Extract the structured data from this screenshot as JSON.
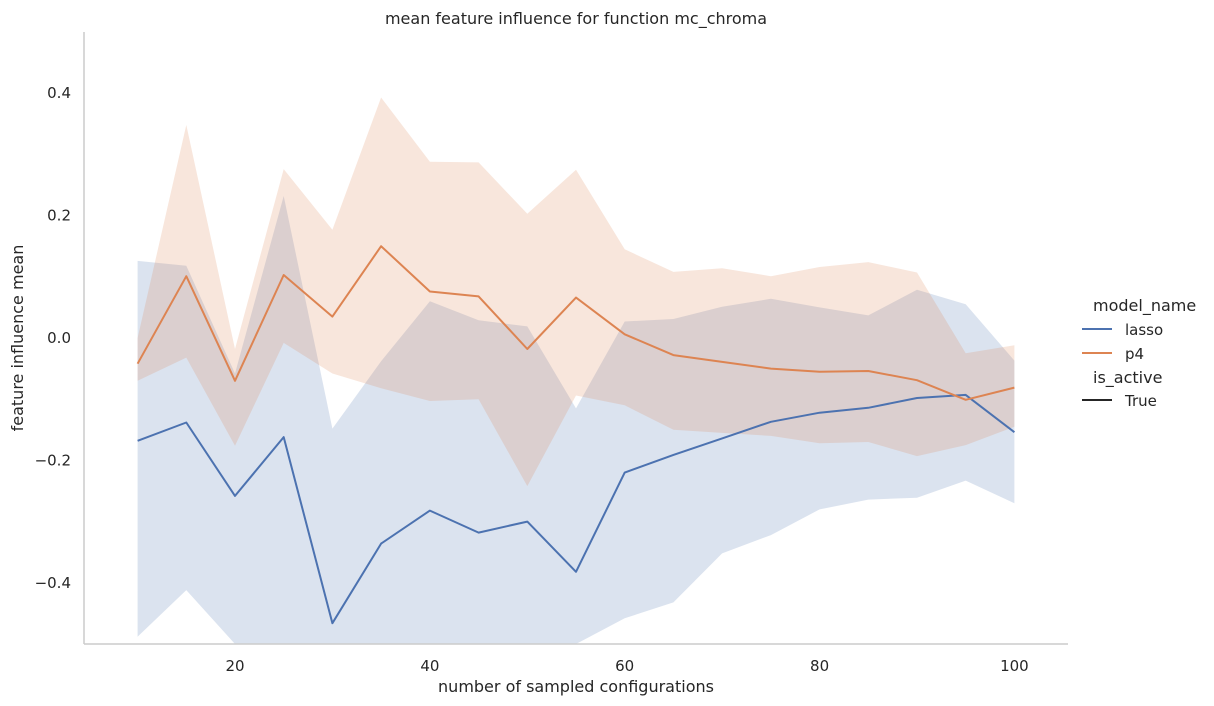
{
  "chart_data": {
    "type": "line",
    "title": "mean feature influence for function mc_chroma",
    "xlabel": "number of sampled configurations",
    "ylabel": "feature influence mean",
    "xlim": [
      4.5,
      105.5
    ],
    "ylim": [
      -0.5,
      0.5
    ],
    "xticks": [
      20,
      40,
      60,
      80,
      100
    ],
    "yticks": [
      -0.4,
      -0.2,
      0.0,
      0.2,
      0.4
    ],
    "ytick_labels": [
      "−0.4",
      "−0.2",
      "0.0",
      "0.2",
      "0.4"
    ],
    "grid": false,
    "legend_placement": "right",
    "x": [
      10,
      15,
      20,
      25,
      30,
      35,
      40,
      45,
      50,
      55,
      60,
      65,
      70,
      75,
      80,
      85,
      90,
      95,
      100
    ],
    "series": [
      {
        "name": "lasso",
        "color": "#4c72b0",
        "values": [
          -0.168,
          -0.138,
          -0.258,
          -0.162,
          -0.466,
          -0.336,
          -0.282,
          -0.318,
          -0.3,
          -0.382,
          -0.22,
          -0.191,
          -0.164,
          -0.137,
          -0.122,
          -0.114,
          -0.098,
          -0.093,
          -0.154
        ],
        "ci_lower": [
          -0.488,
          -0.412,
          -0.51,
          -0.51,
          -0.51,
          -0.51,
          -0.51,
          -0.51,
          -0.51,
          -0.51,
          -0.458,
          -0.432,
          -0.352,
          -0.322,
          -0.28,
          -0.264,
          -0.261,
          -0.233,
          -0.27
        ],
        "ci_upper": [
          0.126,
          0.118,
          -0.058,
          0.232,
          -0.148,
          -0.038,
          0.06,
          0.029,
          0.019,
          -0.115,
          0.027,
          0.031,
          0.051,
          0.064,
          0.05,
          0.037,
          0.079,
          0.055,
          -0.037
        ]
      },
      {
        "name": "p4",
        "color": "#dd8452",
        "values": [
          -0.042,
          0.101,
          -0.07,
          0.103,
          0.035,
          0.15,
          0.076,
          0.068,
          -0.018,
          0.066,
          0.006,
          -0.028,
          -0.039,
          -0.05,
          -0.055,
          -0.054,
          -0.069,
          -0.101,
          -0.081
        ],
        "ci_lower": [
          -0.07,
          -0.032,
          -0.176,
          -0.008,
          -0.058,
          -0.082,
          -0.103,
          -0.1,
          -0.242,
          -0.094,
          -0.11,
          -0.15,
          -0.155,
          -0.16,
          -0.172,
          -0.17,
          -0.193,
          -0.175,
          -0.145
        ],
        "ci_upper": [
          0.0,
          0.348,
          -0.018,
          0.276,
          0.177,
          0.393,
          0.288,
          0.287,
          0.203,
          0.275,
          0.145,
          0.108,
          0.114,
          0.101,
          0.116,
          0.124,
          0.107,
          -0.025,
          -0.012
        ]
      }
    ],
    "legend": {
      "hue_title": "model_name",
      "hue_entries": [
        "lasso",
        "p4"
      ],
      "style_title": "is_active",
      "style_entries": [
        "True"
      ]
    },
    "style_color": "#262626"
  }
}
